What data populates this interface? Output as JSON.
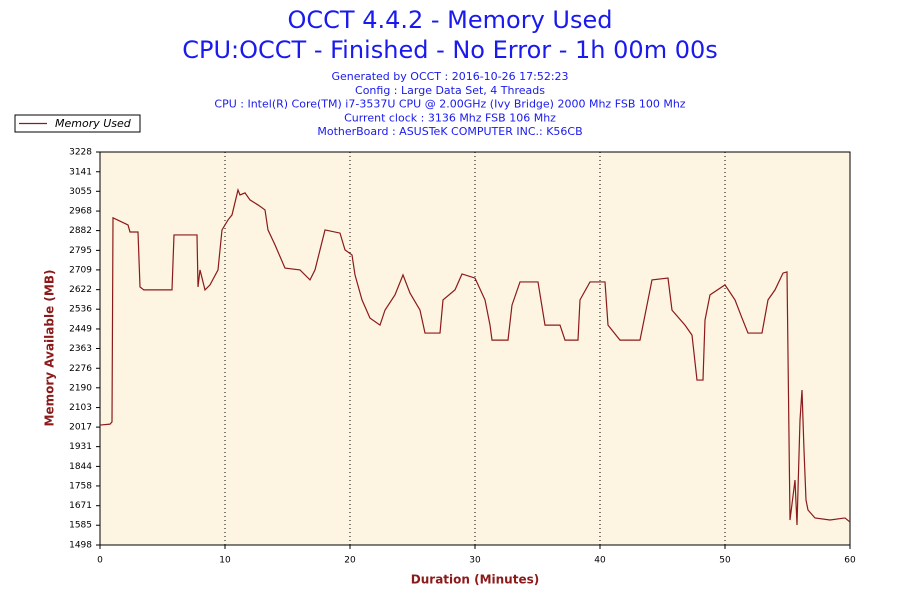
{
  "chart_data": {
    "type": "line",
    "title": "OCCT 4.4.2 - Memory Used",
    "subtitle": "CPU:OCCT - Finished - No Error - 1h 00m 00s",
    "info_lines": [
      "Generated by OCCT : 2016-10-26 17:52:23",
      "Config : Large Data Set, 4 Threads",
      "CPU : Intel(R) Core(TM) i7-3537U CPU @ 2.00GHz (Ivy Bridge) 2000 Mhz FSB 100 Mhz",
      "Current clock : 3136 Mhz FSB 106 Mhz",
      "MotherBoard : ASUSTeK COMPUTER INC.: K56CB"
    ],
    "x_label": "Duration (Minutes)",
    "y_label": "Memory Available (MB)",
    "legend": "top-left",
    "grid": "x",
    "xlim": [
      0,
      60
    ],
    "xticks": [
      0,
      10,
      20,
      30,
      40,
      50,
      60
    ],
    "ylim": [
      1498,
      3228
    ],
    "yticks": [
      1498,
      1585,
      1671,
      1758,
      1844,
      1931,
      2017,
      2103,
      2190,
      2276,
      2363,
      2449,
      2536,
      2622,
      2709,
      2795,
      2882,
      2968,
      3055,
      3141,
      3228
    ],
    "x": [
      0,
      0.8,
      0.96,
      1.04,
      2.24,
      2.4,
      3.04,
      3.2,
      3.5,
      5.76,
      5.92,
      7.76,
      7.84,
      8,
      8.4,
      8.8,
      9.44,
      9.76,
      10.24,
      10.56,
      11.04,
      11.2,
      11.6,
      12,
      12.64,
      13.2,
      13.44,
      14,
      14.8,
      16,
      16.8,
      17.2,
      18,
      19.2,
      19.6,
      20.16,
      20.4,
      20.96,
      21.6,
      22.4,
      22.8,
      23.6,
      24.24,
      24.8,
      25.6,
      26,
      27.2,
      27.44,
      28.4,
      28.96,
      30,
      30.8,
      31.2,
      31.36,
      32.64,
      32.96,
      33.6,
      35.04,
      35.6,
      36.8,
      37.2,
      38.24,
      38.4,
      39.2,
      40.4,
      40.64,
      41.6,
      43.2,
      43.44,
      44.16,
      45.44,
      45.76,
      46.8,
      47.36,
      47.76,
      48.24,
      48.4,
      48.8,
      50,
      50.8,
      51.36,
      51.84,
      52.96,
      53.44,
      54,
      54.64,
      54.96,
      55.2,
      55.6,
      55.76,
      56,
      56.16,
      56.32,
      56.48,
      56.64,
      57.2,
      58.4,
      59.6,
      60
    ],
    "series": [
      {
        "name": "Memory Used",
        "color": "#8b1a1a",
        "values": [
          2026,
          2030,
          2040,
          2938,
          2907,
          2876,
          2876,
          2634,
          2621,
          2621,
          2863,
          2863,
          2634,
          2709,
          2621,
          2643,
          2709,
          2885,
          2929,
          2951,
          3061,
          3039,
          3048,
          3017,
          2995,
          2973,
          2885,
          2819,
          2717,
          2709,
          2665,
          2709,
          2885,
          2871,
          2797,
          2775,
          2687,
          2577,
          2497,
          2466,
          2532,
          2599,
          2687,
          2607,
          2532,
          2431,
          2431,
          2577,
          2621,
          2691,
          2673,
          2577,
          2466,
          2400,
          2400,
          2554,
          2656,
          2656,
          2466,
          2466,
          2400,
          2400,
          2577,
          2656,
          2656,
          2466,
          2400,
          2400,
          2466,
          2665,
          2673,
          2532,
          2466,
          2422,
          2224,
          2224,
          2488,
          2599,
          2643,
          2577,
          2497,
          2431,
          2431,
          2577,
          2621,
          2695,
          2700,
          1608,
          1784,
          1586,
          2048,
          2180,
          1916,
          1696,
          1652,
          1617,
          1608,
          1617,
          1599
        ]
      }
    ]
  }
}
